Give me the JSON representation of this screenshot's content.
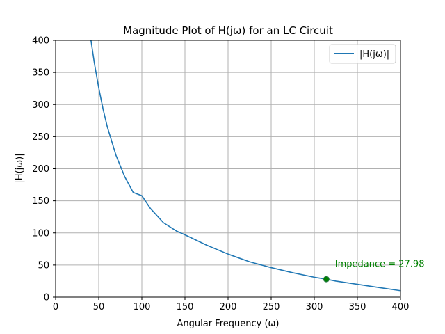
{
  "chart_data": {
    "type": "line",
    "title": "Magnitude Plot of H(jω) for an LC Circuit",
    "xlabel": "Angular Frequency (ω)",
    "ylabel": "|H(jω)|",
    "xlim": [
      0,
      400
    ],
    "ylim": [
      0,
      400
    ],
    "xticks": [
      0,
      50,
      100,
      150,
      200,
      250,
      300,
      350,
      400
    ],
    "yticks": [
      0,
      50,
      100,
      150,
      200,
      250,
      300,
      350,
      400
    ],
    "xtick_labels": [
      "0",
      "50",
      "100",
      "150",
      "200",
      "250",
      "300",
      "350",
      "400"
    ],
    "ytick_labels": [
      "0",
      "50",
      "100",
      "150",
      "200",
      "250",
      "300",
      "350",
      "400"
    ],
    "grid": true,
    "legend_position": "top-right",
    "series": [
      {
        "name": "|H(jω)|",
        "color": "#1f77b4",
        "x": [
          41,
          45,
          50,
          55,
          60,
          70,
          80,
          90,
          100,
          110,
          125,
          140,
          150,
          175,
          200,
          225,
          250,
          275,
          300,
          314,
          325,
          350,
          375,
          400
        ],
        "y": [
          400,
          364,
          326,
          293,
          265,
          221,
          188,
          163,
          158,
          138,
          116,
          103,
          97,
          81,
          67,
          55,
          46,
          38,
          31,
          28,
          25,
          20,
          15,
          10
        ]
      }
    ],
    "marker": {
      "x": 314,
      "y": 28,
      "color": "#008000",
      "edge_color": "#2a7a4a"
    },
    "annotations": [
      {
        "text": "Impedance = 27.98",
        "x": 324,
        "y": 47,
        "color": "#008000"
      }
    ]
  }
}
